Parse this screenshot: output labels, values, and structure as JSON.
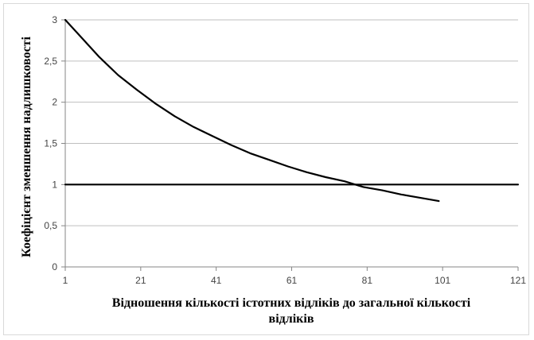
{
  "chart_data": {
    "type": "line",
    "title": "",
    "xlabel_lines": [
      "Відношення кількості істотних відліків до загальної кількості",
      "відліків"
    ],
    "ylabel": "Коефіцієнт зменшення надлишковості",
    "xlim": [
      1,
      121
    ],
    "ylim": [
      0,
      3
    ],
    "x_ticks": [
      "1",
      "21",
      "41",
      "61",
      "81",
      "101",
      "121"
    ],
    "y_ticks": [
      "0",
      "0,5",
      "1",
      "1,5",
      "2",
      "2,5",
      "3"
    ],
    "grid": "horizontal",
    "legend": "none",
    "series": [
      {
        "x": [
          1,
          5,
          10,
          15,
          20,
          25,
          30,
          35,
          40,
          45,
          50,
          55,
          60,
          65,
          70,
          75,
          80,
          85,
          90,
          95,
          100
        ],
        "y": [
          3.0,
          2.8,
          2.55,
          2.33,
          2.15,
          1.98,
          1.83,
          1.7,
          1.59,
          1.48,
          1.38,
          1.3,
          1.22,
          1.15,
          1.09,
          1.04,
          0.97,
          0.93,
          0.88,
          0.84,
          0.8
        ],
        "color": "#000000"
      },
      {
        "x": [
          1,
          121
        ],
        "y": [
          1,
          1
        ],
        "color": "#000000"
      }
    ]
  }
}
